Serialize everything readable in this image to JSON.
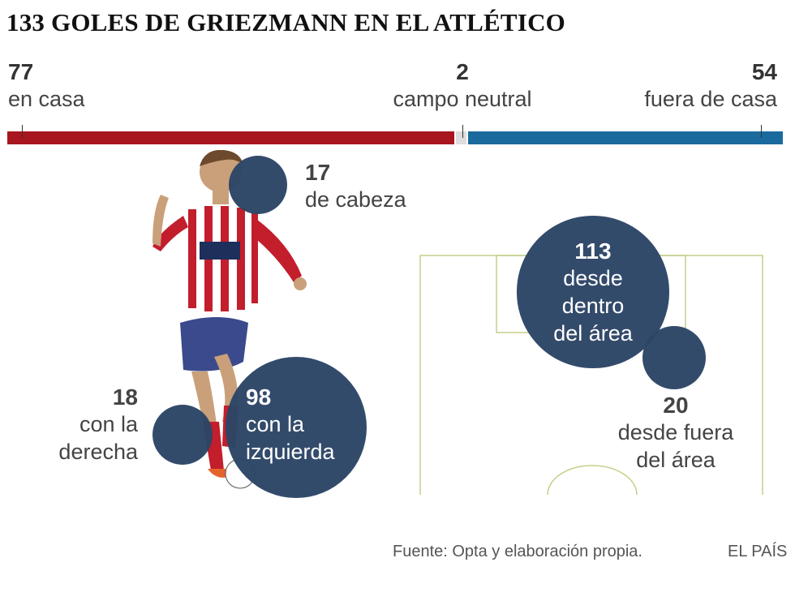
{
  "title": "133 GOLES DE GRIEZMANN EN EL ATLÉTICO",
  "venue": {
    "home": {
      "value": "77",
      "label": "en casa"
    },
    "neutral": {
      "value": "2",
      "label": "campo neutral"
    },
    "away": {
      "value": "54",
      "label": "fuera de casa"
    }
  },
  "colors": {
    "home": "#a8161f",
    "neutral": "#dddddd",
    "away": "#1a6a9e",
    "bubble": "#2c4566",
    "pitch": "#c4cf8a"
  },
  "body": {
    "head": {
      "value": "17",
      "label": "de cabeza"
    },
    "right": {
      "value": "18",
      "label_1": "con la",
      "label_2": "derecha"
    },
    "left": {
      "value": "98",
      "label_1": "con la",
      "label_2": "izquierda"
    }
  },
  "area": {
    "inside": {
      "value": "113",
      "label_1": "desde",
      "label_2": "dentro",
      "label_3": "del área"
    },
    "outside": {
      "value": "20",
      "label_1": "desde fuera",
      "label_2": "del área"
    }
  },
  "footer": {
    "source": "Fuente: Opta y elaboración propia.",
    "brand": "EL PAÍS"
  },
  "chart_data": {
    "type": "bar",
    "title": "133 GOLES DE GRIEZMANN EN EL ATLÉTICO",
    "total": 133,
    "series": [
      {
        "name": "",
        "categories": [
          "en casa",
          "campo neutral",
          "fuera de casa"
        ],
        "values": [
          77,
          2,
          54
        ]
      },
      {
        "name": "",
        "categories": [
          "de cabeza",
          "con la derecha",
          "con la izquierda"
        ],
        "values": [
          17,
          18,
          98
        ]
      },
      {
        "name": "",
        "categories": [
          "desde dentro del área",
          "desde fuera del área"
        ],
        "values": [
          113,
          20
        ]
      }
    ]
  }
}
